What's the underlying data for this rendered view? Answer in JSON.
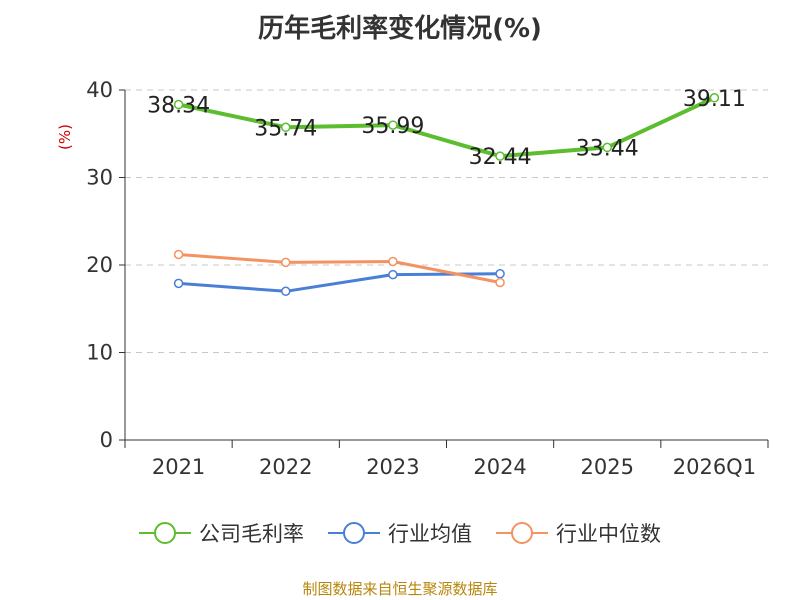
{
  "chart_data": {
    "type": "line",
    "title": "历年毛利率变化情况(%)",
    "ylabel": "(%)",
    "categories": [
      "2021",
      "2022",
      "2023",
      "2024",
      "2025",
      "2026Q1"
    ],
    "ylim": [
      0,
      40
    ],
    "yticks": [
      "0",
      "10",
      "20",
      "30",
      "40"
    ],
    "grid": true,
    "legend_position": "bottom",
    "series": [
      {
        "name": "公司毛利率",
        "color": "#5cbd2e",
        "values": [
          38.34,
          35.74,
          35.99,
          32.44,
          33.44,
          39.11
        ],
        "labels": [
          "38.34",
          "35.74",
          "35.99",
          "32.44",
          "33.44",
          "39.11"
        ]
      },
      {
        "name": "行业均值",
        "color": "#4a7fd8",
        "values": [
          17.9,
          17.0,
          18.9,
          19.0,
          null,
          null
        ]
      },
      {
        "name": "行业中位数",
        "color": "#f49262",
        "values": [
          21.2,
          20.3,
          20.4,
          18.0,
          null,
          null
        ]
      }
    ]
  },
  "source": "制图数据来自恒生聚源数据库"
}
